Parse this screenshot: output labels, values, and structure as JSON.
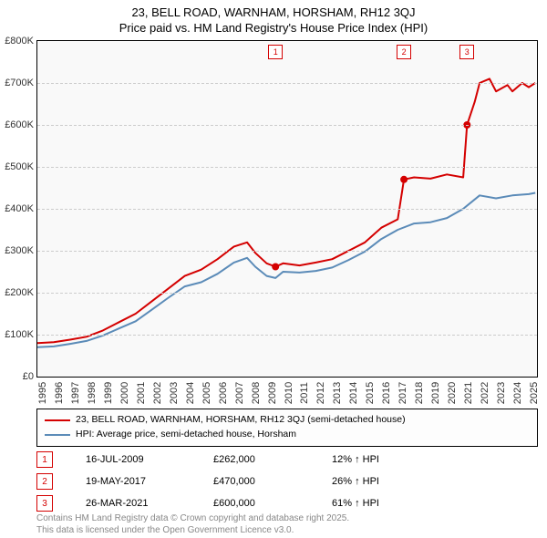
{
  "header": {
    "line1": "23, BELL ROAD, WARNHAM, HORSHAM, RH12 3QJ",
    "line2": "Price paid vs. HM Land Registry's House Price Index (HPI)"
  },
  "chart": {
    "type": "line",
    "background_color": "#f9f9f9",
    "grid_color": "#cccccc",
    "x_range": [
      1995,
      2025.5
    ],
    "x_ticks": [
      1995,
      1996,
      1997,
      1998,
      1999,
      2000,
      2001,
      2002,
      2003,
      2004,
      2005,
      2006,
      2007,
      2008,
      2009,
      2010,
      2011,
      2012,
      2013,
      2014,
      2015,
      2016,
      2017,
      2018,
      2019,
      2020,
      2021,
      2022,
      2023,
      2024,
      2025
    ],
    "y_range": [
      0,
      800000
    ],
    "y_ticks": [
      {
        "v": 0,
        "label": "£0"
      },
      {
        "v": 100000,
        "label": "£100K"
      },
      {
        "v": 200000,
        "label": "£200K"
      },
      {
        "v": 300000,
        "label": "£300K"
      },
      {
        "v": 400000,
        "label": "£400K"
      },
      {
        "v": 500000,
        "label": "£500K"
      },
      {
        "v": 600000,
        "label": "£600K"
      },
      {
        "v": 700000,
        "label": "£700K"
      },
      {
        "v": 800000,
        "label": "£800K"
      }
    ],
    "series": [
      {
        "name": "price_paid",
        "color": "#d40000",
        "width": 2,
        "points": [
          [
            1995,
            80000
          ],
          [
            1996,
            82000
          ],
          [
            1997,
            88000
          ],
          [
            1998,
            95000
          ],
          [
            1999,
            110000
          ],
          [
            2000,
            130000
          ],
          [
            2001,
            150000
          ],
          [
            2002,
            180000
          ],
          [
            2003,
            210000
          ],
          [
            2004,
            240000
          ],
          [
            2005,
            255000
          ],
          [
            2006,
            280000
          ],
          [
            2007,
            310000
          ],
          [
            2007.8,
            320000
          ],
          [
            2008.3,
            295000
          ],
          [
            2009,
            270000
          ],
          [
            2009.54,
            262000
          ],
          [
            2010,
            270000
          ],
          [
            2011,
            265000
          ],
          [
            2012,
            272000
          ],
          [
            2013,
            280000
          ],
          [
            2014,
            300000
          ],
          [
            2015,
            320000
          ],
          [
            2016,
            355000
          ],
          [
            2017,
            375000
          ],
          [
            2017.38,
            470000
          ],
          [
            2018,
            475000
          ],
          [
            2019,
            472000
          ],
          [
            2020,
            482000
          ],
          [
            2021,
            475000
          ],
          [
            2021.23,
            600000
          ],
          [
            2021.7,
            655000
          ],
          [
            2022,
            700000
          ],
          [
            2022.6,
            710000
          ],
          [
            2023,
            680000
          ],
          [
            2023.7,
            695000
          ],
          [
            2024,
            680000
          ],
          [
            2024.6,
            700000
          ],
          [
            2025,
            690000
          ],
          [
            2025.4,
            700000
          ]
        ]
      },
      {
        "name": "hpi",
        "color": "#5b8bb8",
        "width": 2,
        "points": [
          [
            1995,
            70000
          ],
          [
            1996,
            72000
          ],
          [
            1997,
            78000
          ],
          [
            1998,
            85000
          ],
          [
            1999,
            98000
          ],
          [
            2000,
            115000
          ],
          [
            2001,
            132000
          ],
          [
            2002,
            160000
          ],
          [
            2003,
            188000
          ],
          [
            2004,
            215000
          ],
          [
            2005,
            225000
          ],
          [
            2006,
            245000
          ],
          [
            2007,
            272000
          ],
          [
            2007.8,
            283000
          ],
          [
            2008.3,
            262000
          ],
          [
            2009,
            240000
          ],
          [
            2009.54,
            235000
          ],
          [
            2010,
            250000
          ],
          [
            2011,
            248000
          ],
          [
            2012,
            252000
          ],
          [
            2013,
            260000
          ],
          [
            2014,
            278000
          ],
          [
            2015,
            298000
          ],
          [
            2016,
            328000
          ],
          [
            2017,
            350000
          ],
          [
            2018,
            365000
          ],
          [
            2019,
            368000
          ],
          [
            2020,
            378000
          ],
          [
            2021,
            400000
          ],
          [
            2022,
            432000
          ],
          [
            2023,
            425000
          ],
          [
            2024,
            432000
          ],
          [
            2025,
            435000
          ],
          [
            2025.4,
            438000
          ]
        ]
      }
    ],
    "sale_markers": [
      {
        "n": "1",
        "x": 2009.54,
        "y": 262000,
        "color": "#d40000"
      },
      {
        "n": "2",
        "x": 2017.38,
        "y": 470000,
        "color": "#d40000"
      },
      {
        "n": "3",
        "x": 2021.23,
        "y": 600000,
        "color": "#d40000"
      }
    ]
  },
  "legend": {
    "items": [
      {
        "color": "#d40000",
        "label": "23, BELL ROAD, WARNHAM, HORSHAM, RH12 3QJ (semi-detached house)"
      },
      {
        "color": "#5b8bb8",
        "label": "HPI: Average price, semi-detached house, Horsham"
      }
    ]
  },
  "sales": [
    {
      "n": "1",
      "date": "16-JUL-2009",
      "price": "£262,000",
      "pct": "12% ↑ HPI",
      "color": "#d40000"
    },
    {
      "n": "2",
      "date": "19-MAY-2017",
      "price": "£470,000",
      "pct": "26% ↑ HPI",
      "color": "#d40000"
    },
    {
      "n": "3",
      "date": "26-MAR-2021",
      "price": "£600,000",
      "pct": "61% ↑ HPI",
      "color": "#d40000"
    }
  ],
  "footer": {
    "line1": "Contains HM Land Registry data © Crown copyright and database right 2025.",
    "line2": "This data is licensed under the Open Government Licence v3.0."
  }
}
